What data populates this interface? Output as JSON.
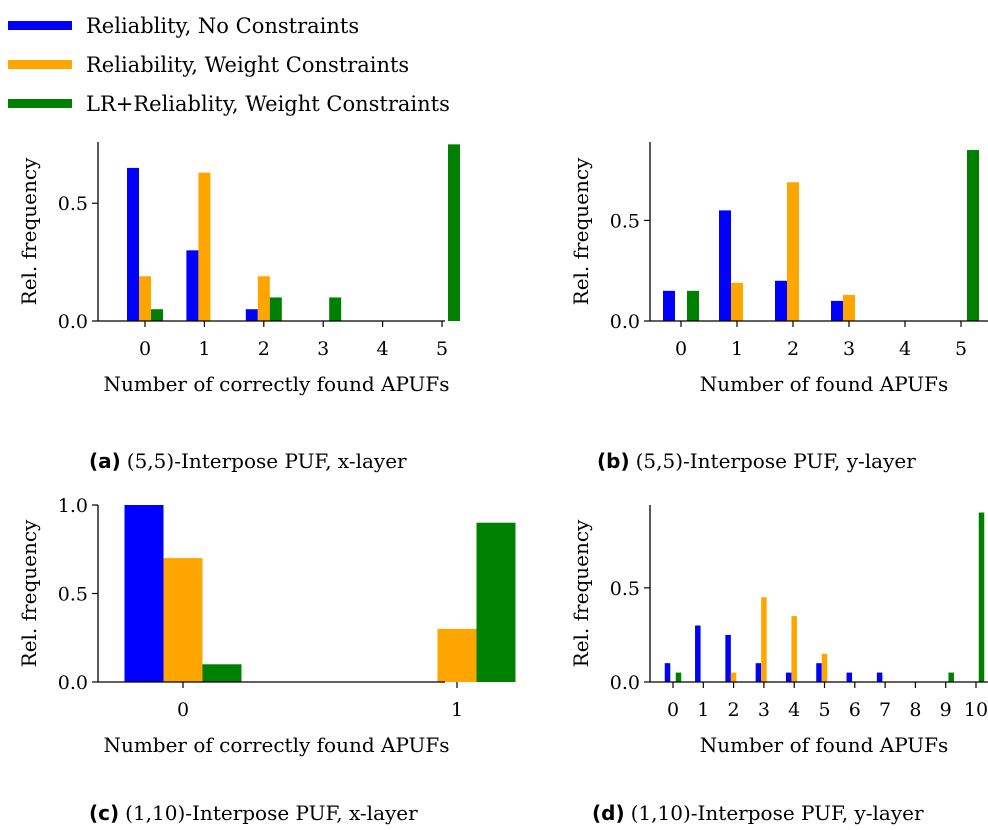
{
  "legend": [
    {
      "label": "Reliablity, No Constraints",
      "color": "#0000ff"
    },
    {
      "label": "Reliability, Weight Constraints",
      "color": "#ffa500"
    },
    {
      "label": "LR+Reliablity, Weight Constraints",
      "color": "#008000"
    }
  ],
  "captions": [
    {
      "tag": "(a)",
      "text": "(5,5)-Interpose PUF, x-layer"
    },
    {
      "tag": "(b)",
      "text": "(5,5)-Interpose PUF, y-layer"
    },
    {
      "tag": "(c)",
      "text": "(1,10)-Interpose PUF, x-layer"
    },
    {
      "tag": "(d)",
      "text": "(1,10)-Interpose PUF, y-layer"
    }
  ],
  "chart_data": [
    {
      "type": "bar",
      "title": "",
      "xlabel": "Number of correctly found APUFs",
      "ylabel": "Rel. frequency",
      "categories": [
        "0",
        "1",
        "2",
        "3",
        "4",
        "5"
      ],
      "ylim": [
        0,
        0.76
      ],
      "yticks": [
        "0.0",
        "0.5"
      ],
      "series": [
        {
          "name": "Reliablity, No Constraints",
          "color": "#0000ff",
          "values": [
            0.65,
            0.3,
            0.05,
            0,
            0,
            0
          ]
        },
        {
          "name": "Reliability, Weight Constraints",
          "color": "#ffa500",
          "values": [
            0.19,
            0.63,
            0.19,
            0,
            0,
            0
          ]
        },
        {
          "name": "LR+Reliablity, Weight Constraints",
          "color": "#008000",
          "values": [
            0.05,
            0,
            0.1,
            0.1,
            0,
            0.75
          ]
        }
      ]
    },
    {
      "type": "bar",
      "title": "",
      "xlabel": "Number of found APUFs",
      "ylabel": "Rel. frequency",
      "categories": [
        "0",
        "1",
        "2",
        "3",
        "4",
        "5"
      ],
      "ylim": [
        0,
        0.89
      ],
      "yticks": [
        "0.0",
        "0.5"
      ],
      "series": [
        {
          "name": "Reliablity, No Constraints",
          "color": "#0000ff",
          "values": [
            0.15,
            0.55,
            0.2,
            0.1,
            0,
            0
          ]
        },
        {
          "name": "Reliability, Weight Constraints",
          "color": "#ffa500",
          "values": [
            0,
            0.19,
            0.69,
            0.13,
            0,
            0
          ]
        },
        {
          "name": "LR+Reliablity, Weight Constraints",
          "color": "#008000",
          "values": [
            0.15,
            0,
            0,
            0,
            0,
            0.85
          ]
        }
      ]
    },
    {
      "type": "bar",
      "title": "",
      "xlabel": "Number of correctly found APUFs",
      "ylabel": "Rel. frequency",
      "categories": [
        "0",
        "1"
      ],
      "ylim": [
        0,
        1.0
      ],
      "yticks": [
        "0.0",
        "0.5",
        "1.0"
      ],
      "series": [
        {
          "name": "Reliablity, No Constraints",
          "color": "#0000ff",
          "values": [
            1.0,
            0
          ]
        },
        {
          "name": "Reliability, Weight Constraints",
          "color": "#ffa500",
          "values": [
            0.7,
            0.3
          ]
        },
        {
          "name": "LR+Reliablity, Weight Constraints",
          "color": "#008000",
          "values": [
            0.1,
            0.9
          ]
        }
      ]
    },
    {
      "type": "bar",
      "title": "",
      "xlabel": "Number of found APUFs",
      "ylabel": "Rel. frequency",
      "categories": [
        "0",
        "1",
        "2",
        "3",
        "4",
        "5",
        "6",
        "7",
        "8",
        "9",
        "10"
      ],
      "ylim": [
        0,
        0.94
      ],
      "yticks": [
        "0.0",
        "0.5"
      ],
      "series": [
        {
          "name": "Reliablity, No Constraints",
          "color": "#0000ff",
          "values": [
            0.1,
            0.3,
            0.25,
            0.1,
            0.05,
            0.1,
            0.05,
            0.05,
            0,
            0,
            0
          ]
        },
        {
          "name": "Reliability, Weight Constraints",
          "color": "#ffa500",
          "values": [
            0,
            0,
            0.05,
            0.45,
            0.35,
            0.15,
            0,
            0,
            0,
            0,
            0
          ]
        },
        {
          "name": "LR+Reliablity, Weight Constraints",
          "color": "#008000",
          "values": [
            0.05,
            0,
            0,
            0,
            0,
            0,
            0,
            0,
            0,
            0.05,
            0.9
          ]
        }
      ]
    }
  ]
}
